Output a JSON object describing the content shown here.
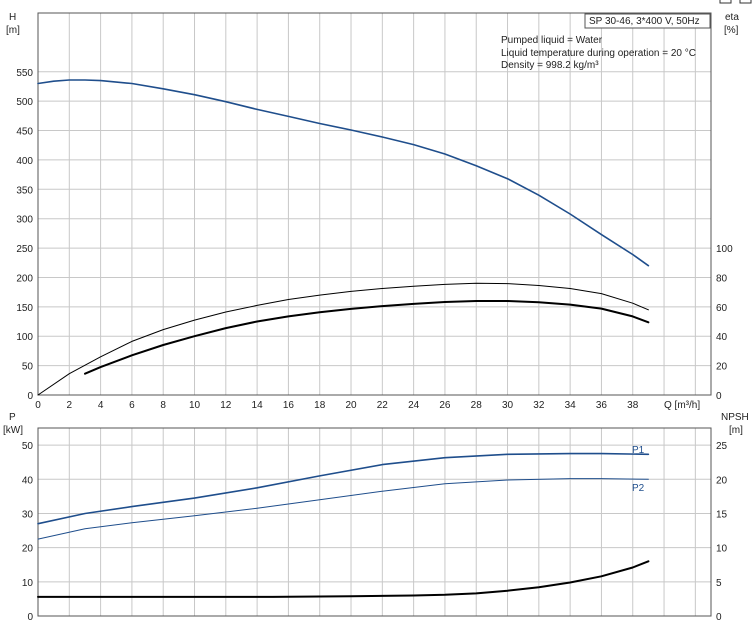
{
  "chart_data": [
    {
      "type": "line",
      "title": "SP 30-46, 3*400 V, 50Hz",
      "annotations": [
        "Pumped liquid = Water",
        "Liquid temperature during operation = 20 °C",
        "Density = 998.2 kg/m³"
      ],
      "xlabel": "Q [m³/h]",
      "xlim": [
        0,
        43
      ],
      "xticks": [
        0,
        2,
        4,
        6,
        8,
        10,
        12,
        14,
        16,
        18,
        20,
        22,
        24,
        26,
        28,
        30,
        32,
        34,
        36,
        38
      ],
      "y_left": {
        "label_top": "H",
        "label_unit": "[m]",
        "ylim": [
          0,
          650
        ],
        "ticks": [
          0,
          50,
          100,
          150,
          200,
          250,
          300,
          350,
          400,
          450,
          500,
          550
        ]
      },
      "y_right": {
        "label_top": "eta",
        "label_unit": "[%]",
        "ylim": [
          0,
          260
        ],
        "ticks": [
          0,
          20,
          40,
          60,
          80,
          100
        ]
      },
      "grid": true,
      "series": [
        {
          "axis": "left",
          "color": "#1f4e8c",
          "width": 1.6,
          "x": [
            0,
            1,
            2,
            3,
            4,
            6,
            8,
            10,
            12,
            14,
            16,
            18,
            20,
            22,
            24,
            26,
            28,
            30,
            32,
            34,
            36,
            38,
            39
          ],
          "y": [
            530,
            534,
            536,
            536,
            535,
            530,
            521,
            511,
            499,
            486,
            474,
            462,
            451,
            439,
            426,
            410,
            390,
            368,
            340,
            308,
            273,
            239,
            220
          ]
        },
        {
          "axis": "right",
          "color": "#000000",
          "width": 1,
          "x": [
            0,
            2,
            4,
            6,
            8,
            10,
            12,
            14,
            16,
            18,
            20,
            22,
            24,
            26,
            28,
            30,
            32,
            34,
            36,
            38,
            39
          ],
          "y": [
            0,
            14.5,
            26,
            36.5,
            44.5,
            51,
            56.5,
            61,
            65,
            68,
            70.5,
            72.5,
            74,
            75.3,
            76,
            75.8,
            74.5,
            72.5,
            69,
            62.5,
            58
          ]
        },
        {
          "axis": "right",
          "color": "#000000",
          "width": 2,
          "x": [
            3,
            4,
            6,
            8,
            10,
            12,
            14,
            16,
            18,
            20,
            22,
            24,
            26,
            28,
            30,
            32,
            34,
            36,
            38,
            39
          ],
          "y": [
            14.5,
            19,
            27,
            34,
            40,
            45.5,
            50,
            53.5,
            56.3,
            58.6,
            60.5,
            62,
            63.3,
            64,
            64,
            63.1,
            61.5,
            58.8,
            53.5,
            49.5
          ]
        }
      ]
    },
    {
      "type": "line",
      "xlim": [
        0,
        43
      ],
      "y_left": {
        "label_top": "P",
        "label_unit": "[kW]",
        "ylim": [
          0,
          55
        ],
        "ticks": [
          0,
          10,
          20,
          30,
          40,
          50
        ]
      },
      "y_right": {
        "label_top": "NPSH",
        "label_unit": "[m]",
        "ylim": [
          0,
          27.5
        ],
        "ticks": [
          0,
          5,
          10,
          15,
          20,
          25
        ]
      },
      "grid": true,
      "series": [
        {
          "name": "P1",
          "axis": "left",
          "color": "#1f4e8c",
          "width": 1.6,
          "x": [
            0,
            3,
            6,
            10,
            14,
            18,
            22,
            26,
            30,
            34,
            36,
            39
          ],
          "y": [
            27,
            30,
            32,
            34.5,
            37.5,
            41,
            44.3,
            46.3,
            47.3,
            47.5,
            47.5,
            47.3
          ]
        },
        {
          "name": "P2",
          "axis": "left",
          "color": "#1f4e8c",
          "width": 1,
          "x": [
            0,
            3,
            6,
            10,
            14,
            18,
            22,
            26,
            30,
            34,
            36,
            39
          ],
          "y": [
            22.5,
            25.5,
            27.3,
            29.3,
            31.5,
            34,
            36.5,
            38.7,
            39.8,
            40.2,
            40.2,
            40
          ]
        },
        {
          "axis": "right",
          "color": "#000000",
          "width": 2,
          "x": [
            0,
            5,
            10,
            15,
            20,
            24,
            26,
            28,
            30,
            32,
            34,
            36,
            38,
            39
          ],
          "y": [
            2.8,
            2.8,
            2.8,
            2.8,
            2.9,
            3.0,
            3.1,
            3.3,
            3.7,
            4.2,
            4.9,
            5.8,
            7.1,
            8.0
          ]
        }
      ]
    }
  ]
}
